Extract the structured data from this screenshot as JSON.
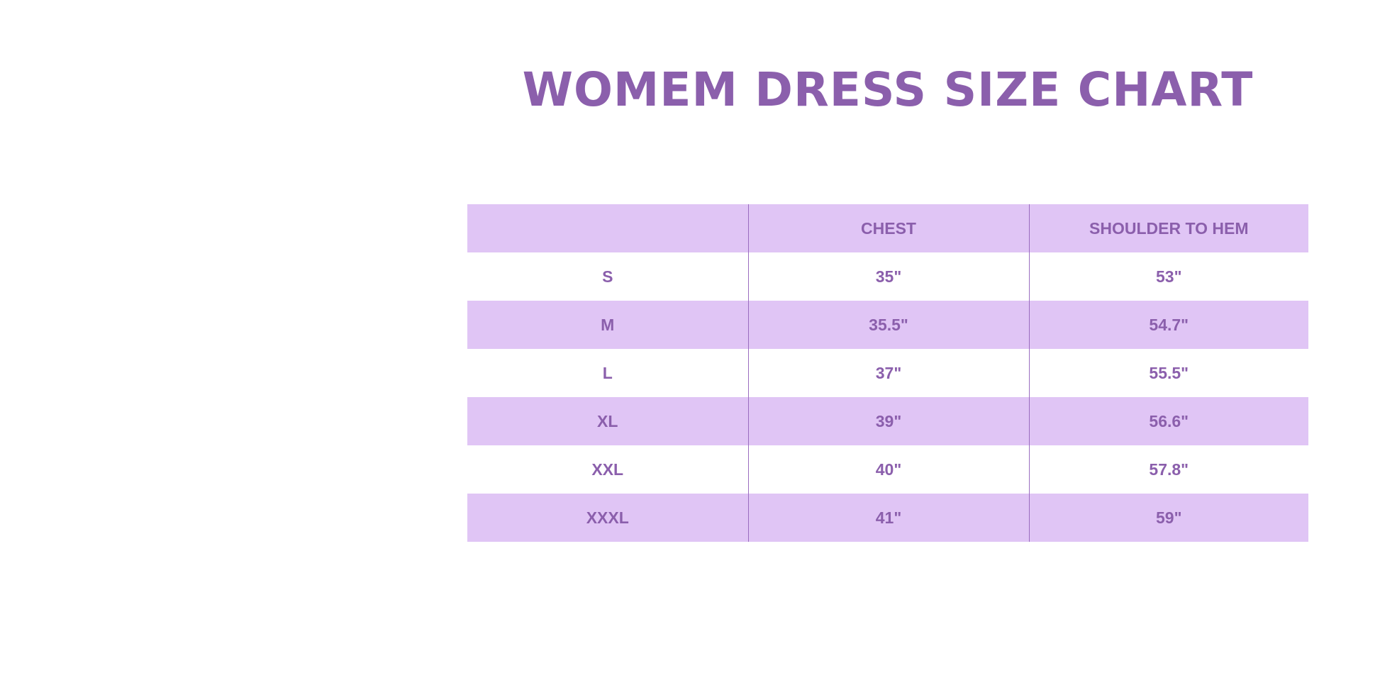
{
  "title": "WOMEM DRESS SIZE CHART",
  "colors": {
    "accent": "#8b5fac",
    "row_shade": "#e0c5f5"
  },
  "table": {
    "headers": [
      "",
      "CHEST",
      "SHOULDER TO HEM"
    ],
    "rows": [
      [
        "S",
        "35\"",
        "53\""
      ],
      [
        "M",
        "35.5\"",
        "54.7\""
      ],
      [
        "L",
        "37\"",
        "55.5\""
      ],
      [
        "XL",
        "39\"",
        "56.6\""
      ],
      [
        "XXL",
        "40\"",
        "57.8\""
      ],
      [
        "XXXL",
        "41\"",
        "59\""
      ]
    ]
  }
}
